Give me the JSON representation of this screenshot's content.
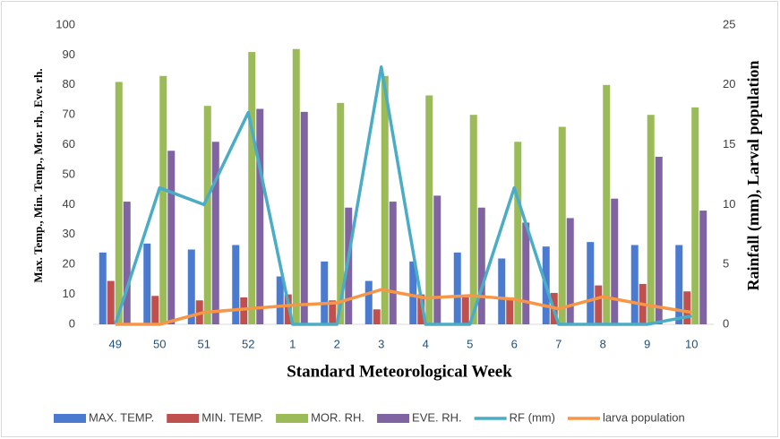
{
  "chart_data": {
    "type": "bar",
    "x_label": "Standard Meteorological Week",
    "y_label": "Max. Temp., Min. Temp., Mor. rh., Eve. rh.",
    "y2_label": "Rainfall (mm), Larval population",
    "categories": [
      "49",
      "50",
      "51",
      "52",
      "1",
      "2",
      "3",
      "4",
      "5",
      "6",
      "7",
      "8",
      "9",
      "10"
    ],
    "series": [
      {
        "name": "MAX. TEMP.",
        "type": "bar",
        "color": "#4a7bd0",
        "values": [
          24,
          27,
          25,
          26.5,
          16,
          21,
          14.5,
          21,
          24,
          22,
          26,
          27.5,
          26.5,
          26.5
        ]
      },
      {
        "name": "MIN. TEMP.",
        "type": "bar",
        "color": "#c0504d",
        "values": [
          14.5,
          9.5,
          8,
          9,
          10,
          8,
          5,
          10,
          9,
          9,
          10.5,
          13,
          13.5,
          11
        ]
      },
      {
        "name": "MOR. RH.",
        "type": "bar",
        "color": "#9bbb59",
        "values": [
          81,
          83,
          73,
          91,
          92,
          74,
          83,
          76.5,
          70,
          61,
          66,
          80,
          70,
          72.5
        ]
      },
      {
        "name": "EVE. RH.",
        "type": "bar",
        "color": "#8064a2",
        "values": [
          41,
          58,
          61,
          72,
          71,
          39,
          41,
          43,
          39,
          34,
          35.5,
          42,
          56,
          38
        ]
      },
      {
        "name": "RF (mm)",
        "type": "line",
        "axis": "y2",
        "color": "#4bacc6",
        "values": [
          0,
          11.4,
          10,
          17.7,
          0,
          0,
          21.5,
          0,
          0,
          11.4,
          0,
          0,
          0,
          0.7
        ]
      },
      {
        "name": "larva population",
        "type": "line",
        "axis": "y2",
        "color": "#f79646",
        "values": [
          0,
          0,
          1,
          1.3,
          1.6,
          1.8,
          2.9,
          2.2,
          2.4,
          2.1,
          1.3,
          2.3,
          1.6,
          1
        ]
      }
    ],
    "ylim": [
      0,
      100
    ],
    "yticks": [
      0,
      10,
      20,
      30,
      40,
      50,
      60,
      70,
      80,
      90,
      100
    ],
    "y2lim": [
      0,
      25
    ],
    "y2ticks": [
      0,
      5,
      10,
      15,
      20,
      25
    ],
    "grid": false,
    "legend": "bottom"
  }
}
